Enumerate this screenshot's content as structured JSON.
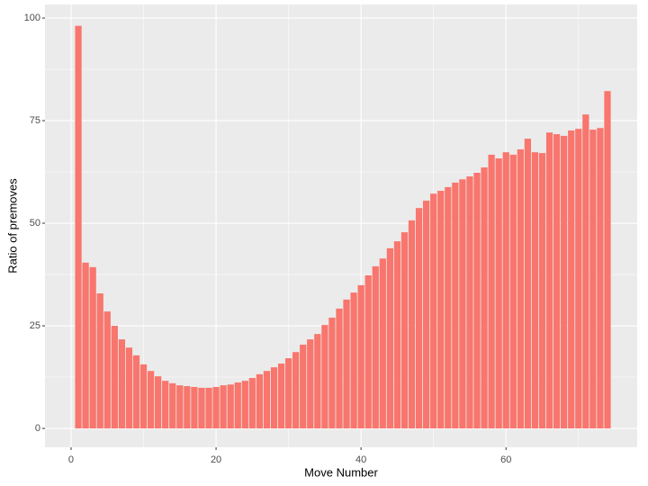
{
  "chart_data": {
    "type": "bar",
    "x_label": "Move Number",
    "y_label": "Ratio of premoves",
    "x": [
      1,
      2,
      3,
      4,
      5,
      6,
      7,
      8,
      9,
      10,
      11,
      12,
      13,
      14,
      15,
      16,
      17,
      18,
      19,
      20,
      21,
      22,
      23,
      24,
      25,
      26,
      27,
      28,
      29,
      30,
      31,
      32,
      33,
      34,
      35,
      36,
      37,
      38,
      39,
      40,
      41,
      42,
      43,
      44,
      45,
      46,
      47,
      48,
      49,
      50,
      51,
      52,
      53,
      54,
      55,
      56,
      57,
      58,
      59,
      60,
      61,
      62,
      63,
      64,
      65,
      66,
      67,
      68,
      69,
      70,
      71,
      72,
      73,
      74
    ],
    "values": [
      98.1,
      40.4,
      39.3,
      32.9,
      28.5,
      25.0,
      21.7,
      19.7,
      17.8,
      15.6,
      14.0,
      12.7,
      11.6,
      11.0,
      10.5,
      10.3,
      10.1,
      9.9,
      9.9,
      10.1,
      10.5,
      10.7,
      11.2,
      11.6,
      12.3,
      13.2,
      14.0,
      14.9,
      15.8,
      17.1,
      18.6,
      20.4,
      21.7,
      23.0,
      25.2,
      27.0,
      29.2,
      31.4,
      33.1,
      34.9,
      37.3,
      39.5,
      41.4,
      43.9,
      45.6,
      47.8,
      50.7,
      53.7,
      55.5,
      57.2,
      57.9,
      58.8,
      59.9,
      60.7,
      61.4,
      62.3,
      63.6,
      66.7,
      65.8,
      67.3,
      66.7,
      68.0,
      70.6,
      67.3,
      67.1,
      72.1,
      71.7,
      71.3,
      72.6,
      73.0,
      76.5,
      72.8,
      73.2,
      82.2
    ],
    "color": "#F8766D",
    "xlim": [
      -3.6,
      78.1
    ],
    "ylim": [
      -4.6,
      103.3
    ],
    "xticks": [
      0,
      20,
      40,
      60
    ],
    "yticks": [
      0,
      25,
      50,
      75,
      100
    ],
    "x_minor_ticks": [
      10,
      30,
      50,
      70
    ],
    "y_minor_ticks": [
      12.5,
      37.5,
      62.5,
      87.5
    ],
    "grid": true
  }
}
